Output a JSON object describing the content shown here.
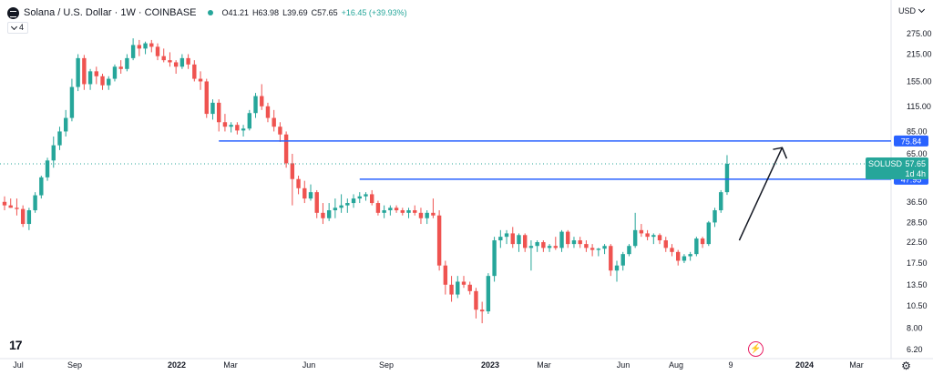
{
  "header": {
    "symbol_title": "Solana / U.S. Dollar · 1W · COINBASE",
    "open": "O41.21",
    "high": "H63.98",
    "low": "L39.69",
    "close": "C57.65",
    "change": "+16.45 (+39.93%)",
    "indicator_count": "4",
    "currency": "USD"
  },
  "price_axis": {
    "ticks": [
      "275.00",
      "215.00",
      "155.00",
      "115.00",
      "85.00",
      "65.00",
      "36.50",
      "28.50",
      "22.50",
      "17.50",
      "13.50",
      "10.50",
      "8.00",
      "6.20"
    ]
  },
  "time_axis": {
    "ticks": [
      "Jul",
      "Sep",
      "2022",
      "Mar",
      "Jun",
      "Sep",
      "2023",
      "Mar",
      "Jun",
      "Aug",
      "9",
      "2024",
      "Mar"
    ]
  },
  "levels": {
    "upper": {
      "value": 75.84,
      "label": "75.84"
    },
    "lower": {
      "value": 47.95,
      "label": "47.95"
    }
  },
  "last_price": {
    "symbol": "SOLUSD",
    "price": "57.65",
    "countdown": "1d 4h"
  },
  "colors": {
    "up": "#26a69a",
    "down": "#ef5350",
    "level_line": "#2962ff",
    "last_price": "#26a69a",
    "arrow": "#131722"
  },
  "chart_data": {
    "type": "candlestick",
    "scale": "log",
    "interval": "1W",
    "symbol": "SOLUSD",
    "exchange": "COINBASE",
    "x_ticks": [
      "Jul",
      "Sep",
      "2022",
      "Mar",
      "Jun",
      "Sep",
      "2023",
      "Mar",
      "Jun",
      "Aug",
      "9",
      "2024",
      "Mar"
    ],
    "y_ticks": [
      275.0,
      215.0,
      155.0,
      115.0,
      85.0,
      65.0,
      36.5,
      28.5,
      22.5,
      17.5,
      13.5,
      10.5,
      8.0,
      6.2
    ],
    "ohlc": [
      [
        36.5,
        39,
        33,
        35
      ],
      [
        35,
        38,
        34,
        34
      ],
      [
        34,
        38,
        31,
        33.5
      ],
      [
        33.5,
        35,
        27,
        28
      ],
      [
        28,
        34,
        26,
        33
      ],
      [
        33,
        41,
        32,
        39.5
      ],
      [
        39.5,
        50,
        38,
        49
      ],
      [
        49,
        62,
        47,
        60
      ],
      [
        60,
        80,
        55,
        72
      ],
      [
        72,
        90,
        68,
        85
      ],
      [
        85,
        110,
        80,
        100
      ],
      [
        100,
        160,
        96,
        145
      ],
      [
        145,
        215,
        138,
        205
      ],
      [
        205,
        213,
        140,
        150
      ],
      [
        150,
        180,
        140,
        175
      ],
      [
        175,
        185,
        150,
        165
      ],
      [
        165,
        170,
        140,
        148
      ],
      [
        148,
        165,
        140,
        160
      ],
      [
        160,
        190,
        155,
        185
      ],
      [
        185,
        200,
        170,
        180
      ],
      [
        180,
        215,
        175,
        205
      ],
      [
        205,
        260,
        200,
        240
      ],
      [
        240,
        255,
        210,
        230
      ],
      [
        230,
        250,
        215,
        245
      ],
      [
        245,
        255,
        220,
        235
      ],
      [
        235,
        245,
        200,
        210
      ],
      [
        210,
        230,
        195,
        200
      ],
      [
        200,
        220,
        185,
        195
      ],
      [
        195,
        200,
        170,
        185
      ],
      [
        185,
        215,
        180,
        205
      ],
      [
        205,
        215,
        180,
        190
      ],
      [
        190,
        200,
        155,
        160
      ],
      [
        160,
        175,
        140,
        155
      ],
      [
        155,
        160,
        100,
        105
      ],
      [
        105,
        125,
        98,
        120
      ],
      [
        120,
        125,
        85,
        95
      ],
      [
        95,
        105,
        85,
        90
      ],
      [
        90,
        95,
        84,
        92
      ],
      [
        92,
        95,
        82,
        86
      ],
      [
        86,
        92,
        80,
        88
      ],
      [
        88,
        110,
        86,
        106
      ],
      [
        106,
        135,
        100,
        130
      ],
      [
        130,
        150,
        110,
        115
      ],
      [
        115,
        120,
        95,
        100
      ],
      [
        100,
        110,
        85,
        90
      ],
      [
        90,
        95,
        75,
        82
      ],
      [
        82,
        85,
        55,
        58
      ],
      [
        58,
        65,
        35,
        48
      ],
      [
        48,
        50,
        40,
        43
      ],
      [
        43,
        47,
        36,
        38
      ],
      [
        38,
        45,
        37,
        41
      ],
      [
        41,
        42,
        30,
        32
      ],
      [
        32,
        36,
        28,
        30
      ],
      [
        30,
        36,
        29,
        33
      ],
      [
        33,
        38,
        30,
        34
      ],
      [
        34,
        40,
        32,
        35
      ],
      [
        35,
        38,
        32,
        36
      ],
      [
        36,
        40,
        34,
        38
      ],
      [
        38,
        41,
        36,
        39
      ],
      [
        39,
        41,
        37,
        40
      ],
      [
        40,
        42,
        35,
        36
      ],
      [
        36,
        37,
        31,
        32
      ],
      [
        32,
        35,
        30,
        33
      ],
      [
        33,
        35,
        31,
        34
      ],
      [
        34,
        35,
        32,
        33
      ],
      [
        33,
        34,
        31,
        32
      ],
      [
        32,
        34,
        30,
        33
      ],
      [
        33,
        35,
        31,
        32
      ],
      [
        32,
        34,
        28,
        30
      ],
      [
        30,
        33,
        28,
        32
      ],
      [
        32,
        38,
        30,
        31
      ],
      [
        31,
        33,
        16,
        17
      ],
      [
        17,
        18,
        12,
        13.5
      ],
      [
        13.5,
        15,
        11,
        12
      ],
      [
        12,
        15,
        11.5,
        14
      ],
      [
        14,
        15,
        13,
        13.5
      ],
      [
        13.5,
        14,
        12,
        12.5
      ],
      [
        12.5,
        13,
        9,
        10
      ],
      [
        10,
        11,
        8.5,
        9.8
      ],
      [
        9.8,
        15.5,
        9.5,
        15
      ],
      [
        15,
        24,
        14,
        23
      ],
      [
        23,
        26,
        21,
        24
      ],
      [
        24,
        26,
        22,
        25
      ],
      [
        25,
        27,
        21,
        22
      ],
      [
        22,
        25,
        20,
        24.5
      ],
      [
        24.5,
        25,
        20,
        21
      ],
      [
        21,
        23,
        16,
        21.5
      ],
      [
        21.5,
        23,
        20,
        22.5
      ],
      [
        22.5,
        23,
        20,
        21
      ],
      [
        21,
        22,
        20,
        21.5
      ],
      [
        21.5,
        24,
        20.5,
        21
      ],
      [
        21,
        26,
        20,
        25.5
      ],
      [
        25.5,
        26,
        21,
        22
      ],
      [
        22,
        24,
        21,
        23
      ],
      [
        23,
        24,
        21,
        22
      ],
      [
        22,
        23,
        20,
        21
      ],
      [
        21,
        22,
        19,
        20.5
      ],
      [
        20.5,
        21,
        19,
        20.8
      ],
      [
        20.8,
        22,
        19.5,
        21.5
      ],
      [
        21.5,
        22,
        15,
        16
      ],
      [
        16,
        18,
        14,
        17
      ],
      [
        17,
        20,
        16,
        19.5
      ],
      [
        19.5,
        22,
        19,
        21.5
      ],
      [
        21.5,
        32,
        21,
        26
      ],
      [
        26,
        28,
        24,
        25
      ],
      [
        25,
        26,
        23,
        24
      ],
      [
        24,
        25,
        22,
        24.5
      ],
      [
        24.5,
        25,
        22,
        23
      ],
      [
        23,
        24,
        20,
        21
      ],
      [
        21,
        22,
        19,
        20
      ],
      [
        20,
        20.5,
        17,
        18
      ],
      [
        18,
        19.5,
        17.5,
        19
      ],
      [
        19,
        20,
        18,
        19.5
      ],
      [
        19.5,
        24,
        19,
        23.5
      ],
      [
        23.5,
        24,
        21,
        22
      ],
      [
        22,
        29,
        21.5,
        28.5
      ],
      [
        28.5,
        34,
        27,
        33
      ],
      [
        33,
        42,
        32,
        41
      ],
      [
        41,
        63.98,
        39.69,
        57.65
      ]
    ],
    "annotations": [
      {
        "type": "horizontal_ray",
        "value": 75.84,
        "label": "75.84",
        "color": "#2962ff"
      },
      {
        "type": "horizontal_ray",
        "value": 47.95,
        "label": "47.95",
        "color": "#2962ff"
      },
      {
        "type": "arrow",
        "from": {
          "bar": 120,
          "value": 23
        },
        "to": {
          "bar": 127,
          "value": 70
        }
      }
    ],
    "last_price": {
      "label": "SOLUSD",
      "value": 57.65,
      "countdown": "1d 4h"
    }
  }
}
